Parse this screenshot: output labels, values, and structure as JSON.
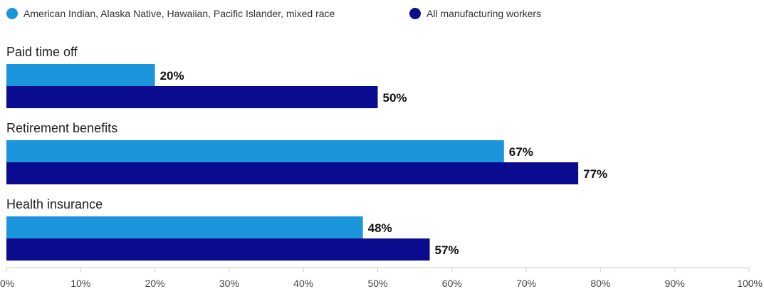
{
  "chart_data": {
    "type": "bar",
    "orientation": "horizontal",
    "title": "",
    "xlabel": "",
    "ylabel": "",
    "categories": [
      "Paid time off",
      "Retirement benefits",
      "Health insurance"
    ],
    "series": [
      {
        "name": "American Indian, Alaska Native, Hawaiian, Pacific Islander, mixed race",
        "color": "#1b96dc",
        "values": [
          20,
          67,
          48
        ],
        "value_labels": [
          "20%",
          "67%",
          "48%"
        ]
      },
      {
        "name": "All manufacturing workers",
        "color": "#0b0b8f",
        "values": [
          50,
          77,
          57
        ],
        "value_labels": [
          "50%",
          "77%",
          "57%"
        ]
      }
    ],
    "xlim": [
      0,
      100
    ],
    "x_ticks": [
      "0%",
      "10%",
      "20%",
      "30%",
      "40%",
      "50%",
      "60%",
      "70%",
      "80%",
      "90%",
      "100%"
    ],
    "legend_position": "top-left",
    "grid": false
  }
}
